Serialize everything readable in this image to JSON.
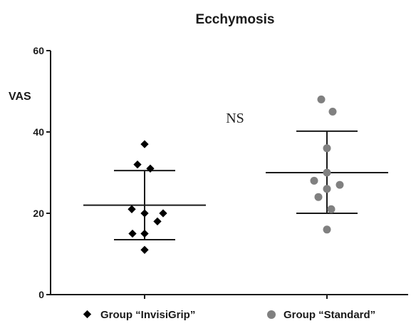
{
  "chart_data": {
    "type": "scatter",
    "title": "Ecchymosis",
    "ylabel": "VAS",
    "ylim": [
      0,
      60
    ],
    "yticks": [
      0,
      20,
      40,
      60
    ],
    "annotation": "NS",
    "grid": false,
    "legend_position": "bottom",
    "series": [
      {
        "name": "Group “InvisiGrip”",
        "marker": "diamond",
        "color": "#000000",
        "values": [
          37,
          32,
          31,
          21,
          20,
          20,
          18,
          15,
          15,
          11
        ],
        "mean": 22,
        "sd_upper": 30.5,
        "sd_lower": 13.5
      },
      {
        "name": "Group “Standard”",
        "marker": "circle",
        "color": "#808080",
        "values": [
          48,
          45,
          36,
          30,
          28,
          27,
          26,
          24,
          21,
          16
        ],
        "mean": 30,
        "sd_upper": 40.2,
        "sd_lower": 20
      }
    ]
  }
}
